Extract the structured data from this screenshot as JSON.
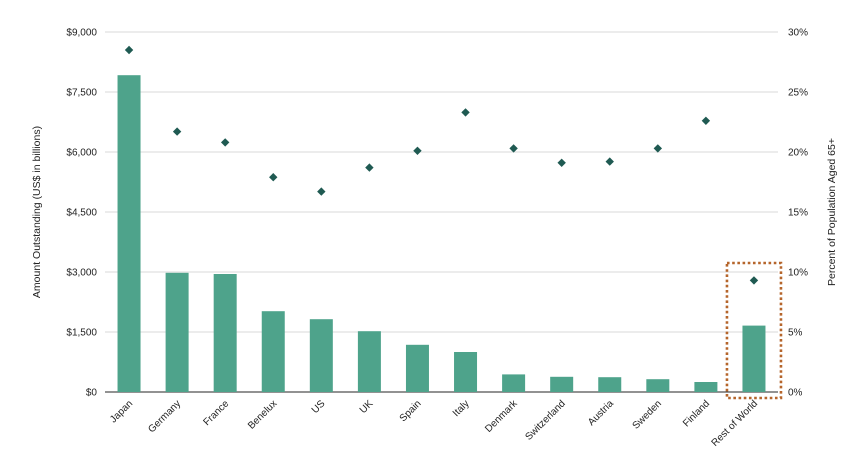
{
  "chart_data": {
    "type": "bar",
    "categories": [
      "Japan",
      "Germany",
      "France",
      "Benelux",
      "US",
      "UK",
      "Spain",
      "Italy",
      "Denmark",
      "Switzerland",
      "Austria",
      "Sweden",
      "Finland",
      "Rest of World"
    ],
    "series": [
      {
        "name": "",
        "type": "bar",
        "axis": "left",
        "values": [
          7920,
          2980,
          2950,
          2020,
          1820,
          1520,
          1180,
          1000,
          440,
          380,
          370,
          320,
          250,
          1660
        ]
      },
      {
        "name": "",
        "type": "scatter",
        "axis": "right",
        "values": [
          28.5,
          21.7,
          20.8,
          17.9,
          16.7,
          18.7,
          20.1,
          23.3,
          20.3,
          19.1,
          19.2,
          20.3,
          22.6,
          9.3
        ]
      }
    ],
    "ylabel": "Amount Outstanding (US$ in billions)",
    "ylim": [
      0,
      9000
    ],
    "yticks": [
      "$0",
      "$1,500",
      "$3,000",
      "$4,500",
      "$6,000",
      "$7,500",
      "$9,000"
    ],
    "y2label": "Percent of Population Aged 65+",
    "y2lim": [
      0,
      30
    ],
    "y2ticks": [
      "0%",
      "5%",
      "10%",
      "15%",
      "20%",
      "25%",
      "30%"
    ],
    "highlight": "Rest of World",
    "grid": true,
    "colors": {
      "bar": "#4ea38b",
      "marker": "#1f5a52",
      "grid": "#d9d9d9",
      "highlight": "#b5652b"
    }
  }
}
